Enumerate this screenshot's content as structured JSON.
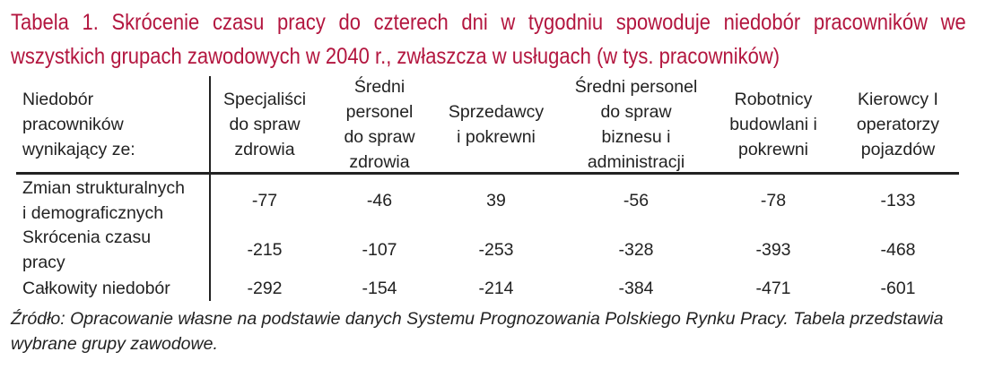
{
  "title": {
    "line1": "Tabela 1. Skrócenie czasu pracy do czterech dni w tygodniu spowoduje niedobór pracowników we",
    "line2": "wszystkich grupach zawodowych w 2040 r., zwłaszcza w usługach (w tys. pracowników)"
  },
  "table": {
    "corner_header": [
      "Niedobór",
      "pracowników",
      "wynikający ze:"
    ],
    "columns": [
      [
        "Specjaliści",
        "do spraw",
        "zdrowia"
      ],
      [
        "Średni",
        "personel",
        "do spraw",
        "zdrowia"
      ],
      [
        "Sprzedawcy",
        "i pokrewni"
      ],
      [
        "Średni personel",
        "do spraw",
        "biznesu i",
        "administracji"
      ],
      [
        "Robotnicy",
        "budowlani i",
        "pokrewni"
      ],
      [
        "Kierowcy I",
        "operatorzy",
        "pojazdów"
      ]
    ],
    "rows": [
      {
        "label": [
          "Zmian strukturalnych",
          "i demograficznych"
        ],
        "values": [
          "-77",
          "-46",
          "39",
          "-56",
          "-78",
          "-133"
        ]
      },
      {
        "label": [
          "Skrócenia czasu",
          "pracy"
        ],
        "values": [
          "-215",
          "-107",
          "-253",
          "-328",
          "-393",
          "-468"
        ]
      },
      {
        "label": [
          "Całkowity niedobór"
        ],
        "values": [
          "-292",
          "-154",
          "-214",
          "-384",
          "-471",
          "-601"
        ]
      }
    ]
  },
  "footnote": {
    "line1": "Źródło: Opracowanie własne na podstawie danych Systemu Prognozowania Polskiego Rynku Pracy. Tabela przedstawia",
    "line2": "wybrane grupy zawodowe."
  }
}
